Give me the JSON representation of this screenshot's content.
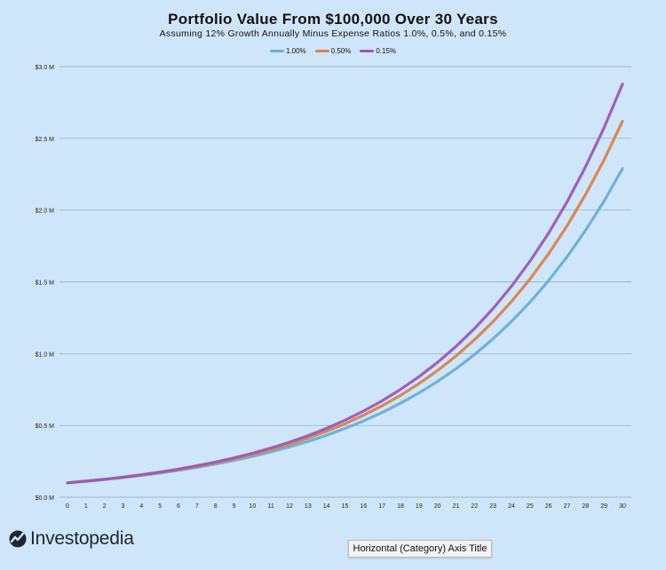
{
  "chart_data": {
    "type": "line",
    "title": "Portfolio Value From $100,000 Over 30 Years",
    "subtitle": "Assuming 12% Growth Annually Minus Expense Ratios 1.0%, 0.5%, and 0.15%",
    "xlabel": "Horizontal (Category) Axis Title",
    "ylabel": "",
    "x": [
      0,
      1,
      2,
      3,
      4,
      5,
      6,
      7,
      8,
      9,
      10,
      11,
      12,
      13,
      14,
      15,
      16,
      17,
      18,
      19,
      20,
      21,
      22,
      23,
      24,
      25,
      26,
      27,
      28,
      29,
      30
    ],
    "ylim": [
      0,
      3000000
    ],
    "ytick_values": [
      0,
      500000,
      1000000,
      1500000,
      2000000,
      2500000,
      3000000
    ],
    "ytick_labels": [
      "$0.0 M",
      "$0.5 M",
      "$1.0 M",
      "$1.5 M",
      "$2.0 M",
      "$2.5 M",
      "$3.0 M"
    ],
    "grid": true,
    "legend_position": "top-center",
    "series": [
      {
        "name": "1.00%",
        "color": "#6baed6",
        "values": [
          100000,
          111000,
          123210,
          136763,
          151807,
          168506,
          187041,
          207616,
          230454,
          255804,
          283942,
          315176,
          349845,
          388328,
          431044,
          478459,
          531089,
          589509,
          654355,
          726334,
          806231,
          894917,
          993357,
          1102627,
          1223916,
          1358546,
          1507986,
          1673865,
          1857990,
          2062369,
          2289230
        ]
      },
      {
        "name": "0.50%",
        "color": "#d9834d",
        "values": [
          100000,
          111500,
          124323,
          138620,
          154561,
          172335,
          192154,
          214251,
          238890,
          266363,
          296995,
          331149,
          369231,
          411693,
          459038,
          511827,
          570687,
          636316,
          709492,
          791084,
          882059,
          983496,
          1096598,
          1222707,
          1363318,
          1520100,
          1694911,
          1889826,
          2107157,
          2349480,
          2619670
        ]
      },
      {
        "name": "0.15%",
        "color": "#9b59b6",
        "values": [
          100000,
          111850,
          125104,
          139929,
          156511,
          175058,
          195803,
          219006,
          244958,
          273986,
          306453,
          342768,
          383386,
          428817,
          479632,
          536468,
          600039,
          671143,
          750674,
          839628,
          939124,
          1050410,
          1174884,
          1314107,
          1469829,
          1644004,
          1838818,
          2056718,
          2300439,
          2573042,
          2877953
        ]
      }
    ]
  },
  "brand": {
    "name": "Investopedia",
    "icon": "investopedia-logo-icon"
  }
}
